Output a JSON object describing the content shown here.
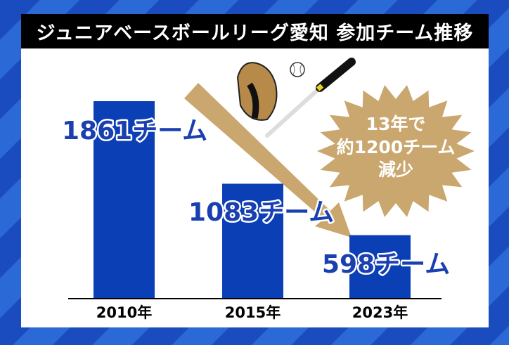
{
  "chart_data": {
    "type": "bar",
    "title": "ジュニアベースボールリーグ愛知 参加チーム推移",
    "categories": [
      "2010年",
      "2015年",
      "2023年"
    ],
    "values": [
      1861,
      1083,
      598
    ],
    "data_labels": [
      "1861チーム",
      "1083チーム",
      "598チーム"
    ],
    "unit": "チーム",
    "annotation": [
      "13年で",
      "約1200チーム",
      "減少"
    ],
    "ylim": [
      0,
      1861
    ],
    "grid": false,
    "colors": {
      "bar": "#0b3fb5",
      "arrow": "#c9a76e",
      "burst": "#c9a76e",
      "background": "#1a4cc0"
    }
  }
}
